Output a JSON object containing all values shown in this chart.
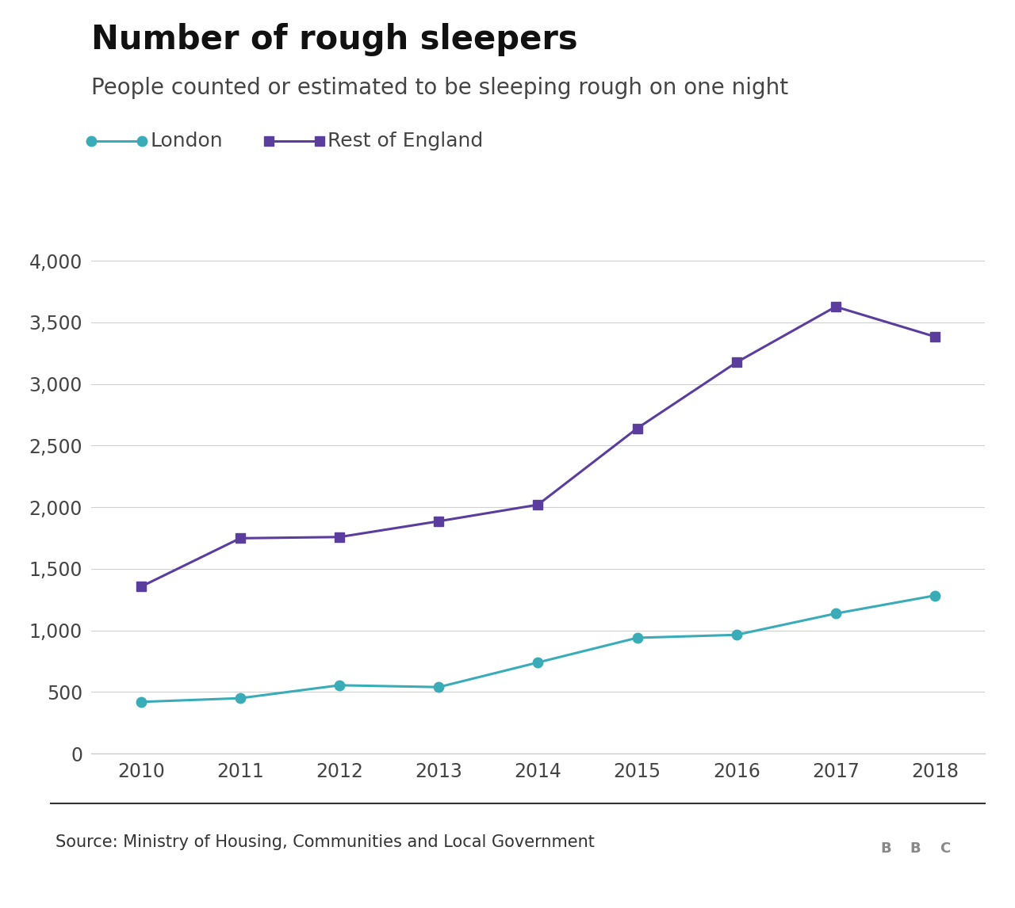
{
  "title": "Number of rough sleepers",
  "subtitle": "People counted or estimated to be sleeping rough on one night",
  "source": "Source: Ministry of Housing, Communities and Local Government",
  "years": [
    2010,
    2011,
    2012,
    2013,
    2014,
    2015,
    2016,
    2017,
    2018
  ],
  "london": [
    420,
    450,
    555,
    540,
    740,
    940,
    964,
    1137,
    1283
  ],
  "rest_of_england": [
    1355,
    1748,
    1758,
    1886,
    2020,
    2640,
    3175,
    3627,
    3384
  ],
  "london_color": "#3aacb8",
  "rest_color": "#5b3d9e",
  "ylim": [
    0,
    4200
  ],
  "yticks": [
    0,
    500,
    1000,
    1500,
    2000,
    2500,
    3000,
    3500,
    4000
  ],
  "background_color": "#ffffff",
  "title_fontsize": 30,
  "subtitle_fontsize": 20,
  "legend_fontsize": 18,
  "tick_fontsize": 17,
  "source_fontsize": 15
}
